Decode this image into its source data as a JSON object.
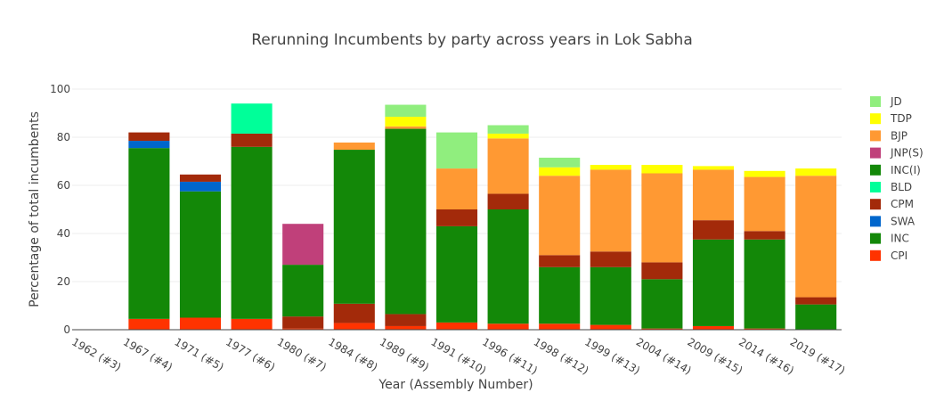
{
  "chart_data": {
    "type": "bar",
    "stacked": true,
    "title": "Rerunning Incumbents by party across years in Lok Sabha",
    "xlabel": "Year (Assembly Number)",
    "ylabel": "Percentage of total incumbents",
    "ylim": [
      0,
      100
    ],
    "yticks": [
      0,
      20,
      40,
      60,
      80,
      100
    ],
    "grid": true,
    "legend_position": "right",
    "categories": [
      "1962 (#3)",
      "1967 (#4)",
      "1971 (#5)",
      "1977 (#6)",
      "1980 (#7)",
      "1984 (#8)",
      "1989 (#9)",
      "1991 (#10)",
      "1996 (#11)",
      "1998 (#12)",
      "1999 (#13)",
      "2004 (#14)",
      "2009 (#15)",
      "2014 (#16)",
      "2019 (#17)"
    ],
    "series": [
      {
        "name": "CPI",
        "color": "#ff3300",
        "values": [
          0,
          4.5,
          5,
          4.5,
          0.5,
          2.8,
          1.5,
          3,
          2.5,
          2.5,
          2,
          0.5,
          1.5,
          0.5,
          0
        ]
      },
      {
        "name": "INC",
        "color": "#138808",
        "values": [
          0,
          71,
          52.5,
          71.5,
          0,
          0,
          0,
          40,
          47.5,
          23.5,
          24,
          20.5,
          36,
          37,
          10.5
        ]
      },
      {
        "name": "SWA",
        "color": "#0066cc",
        "values": [
          0,
          3,
          4,
          0,
          0,
          0,
          0,
          0,
          0,
          0,
          0,
          0,
          0,
          0,
          0
        ]
      },
      {
        "name": "CPM",
        "color": "#a32a0a",
        "values": [
          0,
          3.5,
          3,
          5.5,
          5,
          8,
          5,
          7,
          6.5,
          5,
          6.5,
          7,
          8,
          3.5,
          3
        ]
      },
      {
        "name": "BLD",
        "color": "#00ff99",
        "values": [
          0,
          0,
          0,
          12.5,
          0,
          0,
          0,
          0,
          0,
          0,
          0,
          0,
          0,
          0,
          0
        ]
      },
      {
        "name": "INC(I)",
        "color": "#138808",
        "values": [
          0,
          0,
          0,
          0,
          21.5,
          64,
          77,
          0,
          0,
          0,
          0,
          0,
          0,
          0,
          0
        ]
      },
      {
        "name": "JNP(S)",
        "color": "#c0407a",
        "values": [
          0,
          0,
          0,
          0,
          17,
          0,
          0,
          0,
          0,
          0,
          0,
          0,
          0,
          0,
          0
        ]
      },
      {
        "name": "BJP",
        "color": "#ff9933",
        "values": [
          0,
          0,
          0,
          0,
          0,
          3,
          1,
          17,
          23,
          33,
          34,
          37,
          21,
          22.5,
          50.5
        ]
      },
      {
        "name": "TDP",
        "color": "#ffff00",
        "values": [
          0,
          0,
          0,
          0,
          0,
          0,
          4,
          0,
          2,
          3.5,
          2,
          3.5,
          1.5,
          2.5,
          3
        ]
      },
      {
        "name": "JD",
        "color": "#90ee7e",
        "values": [
          0,
          0,
          0,
          0,
          0,
          0,
          5,
          15,
          3.5,
          4,
          0,
          0,
          0,
          0,
          0
        ]
      }
    ]
  }
}
